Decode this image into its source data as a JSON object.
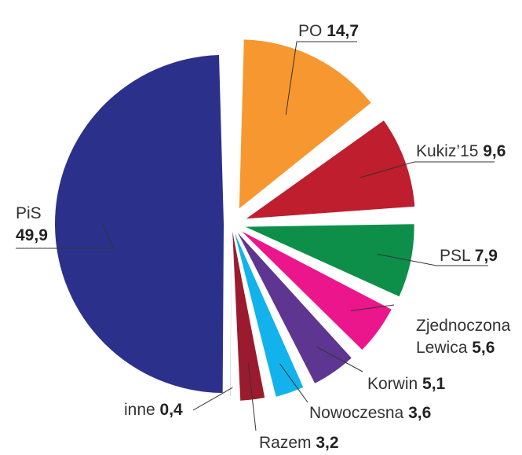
{
  "chart_data": {
    "type": "pie",
    "exploded": true,
    "slices": [
      {
        "name": "PiS",
        "value": 49.9,
        "label": "PiS",
        "value_label": "49,9",
        "color": "#2b318b"
      },
      {
        "name": "PO",
        "value": 14.7,
        "label": "PO",
        "value_label": "14,7",
        "color": "#f7972f"
      },
      {
        "name": "Kukiz’15",
        "value": 9.6,
        "label": "Kukiz’15",
        "value_label": "9,6",
        "color": "#be1e2d"
      },
      {
        "name": "PSL",
        "value": 7.9,
        "label": "PSL",
        "value_label": "7,9",
        "color": "#0d8f4a"
      },
      {
        "name": "Zjednoczona Lewica",
        "value": 5.6,
        "label": "Zjednoczona",
        "label2": "Lewica",
        "value_label": "5,6",
        "color": "#ec168c"
      },
      {
        "name": "Korwin",
        "value": 5.1,
        "label": "Korwin",
        "value_label": "5,1",
        "color": "#5e3691"
      },
      {
        "name": "Nowoczesna",
        "value": 3.6,
        "label": "Nowoczesna",
        "value_label": "3,6",
        "color": "#12b3ec"
      },
      {
        "name": "Razem",
        "value": 3.2,
        "label": "Razem",
        "value_label": "3,2",
        "color": "#9b1b2e"
      },
      {
        "name": "inne",
        "value": 0.4,
        "label": "inne",
        "value_label": "0,4",
        "color": "#bdbdbd"
      }
    ]
  }
}
